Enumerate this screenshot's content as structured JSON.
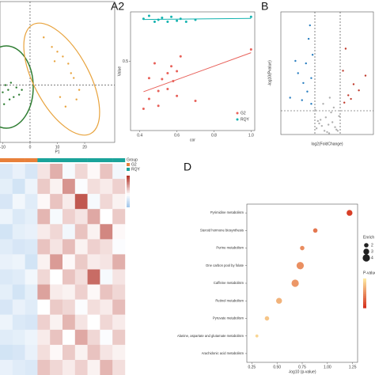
{
  "chart_data": [
    {
      "type": "scatter",
      "xlabel": "P1",
      "xlim": [
        -11,
        31
      ],
      "ylim": [
        -2.4,
        3.5
      ],
      "xticks": [
        -10,
        0,
        10,
        20
      ],
      "series": [
        {
          "color": "#2e7d32",
          "x": [
            -10,
            -9,
            -8,
            -7,
            -6,
            -5,
            -4,
            -3,
            -9.5,
            -7.5
          ],
          "values": [
            -0.3,
            0.0,
            -0.2,
            0.1,
            -0.5,
            -0.1,
            -0.4,
            -0.2,
            -0.8,
            -0.6
          ]
        },
        {
          "color": "#e8a33d",
          "x": [
            5,
            8,
            10,
            12,
            14,
            15,
            16,
            18,
            11,
            9,
            13,
            17
          ],
          "values": [
            2.0,
            1.6,
            1.4,
            1.2,
            0.9,
            0.5,
            0.3,
            -0.2,
            -0.5,
            1.0,
            -0.9,
            -0.6
          ]
        }
      ]
    },
    {
      "type": "scatter",
      "panel": "A2",
      "xlabel": "cor",
      "ylabel": "Value",
      "xlim": [
        0.35,
        1.02
      ],
      "ylim": [
        -0.2,
        1.0
      ],
      "xticks": [
        0.4,
        0.6,
        0.8,
        {
          "value": 1,
          "label": "1.0"
        }
      ],
      "yticks": [
        0.5
      ],
      "trendline": true,
      "legend": "bottom-right",
      "series": [
        {
          "name": "G2",
          "color": "#e8615a",
          "x": [
            0.42,
            0.45,
            0.5,
            0.52,
            0.55,
            0.57,
            0.6,
            0.62,
            0.45,
            0.5,
            0.55,
            0.6,
            0.7,
            1.0,
            0.48,
            0.58
          ],
          "values": [
            0.02,
            0.12,
            0.2,
            0.32,
            0.38,
            0.45,
            0.4,
            0.55,
            0.33,
            0.05,
            0.22,
            0.15,
            0.1,
            0.62,
            0.48,
            0.3
          ]
        },
        {
          "name": "RQY",
          "color": "#14b3b0",
          "x": [
            0.42,
            0.45,
            0.5,
            0.52,
            0.55,
            0.57,
            0.6,
            0.62,
            0.65,
            0.7,
            1.0,
            0.48
          ],
          "values": [
            0.93,
            0.96,
            0.92,
            0.94,
            0.9,
            0.95,
            0.91,
            0.93,
            0.9,
            0.92,
            0.95,
            0.9
          ]
        }
      ]
    },
    {
      "type": "scatter",
      "panel": "B",
      "xlabel": "log2(FoldChange)",
      "ylabel": "-log10(Pvalue)",
      "xlim": [
        -3.5,
        3.5
      ],
      "ylim": [
        0,
        10
      ],
      "series": [
        {
          "color": "#b0b0b0",
          "x": [
            -0.8,
            -0.5,
            -0.2,
            0.1,
            0.4,
            0.7,
            0.9,
            -0.9,
            -0.3,
            0.3,
            0.6,
            -0.6,
            0.0,
            0.2,
            -0.1,
            0.5,
            -0.4,
            0.8,
            -0.7,
            0.15
          ],
          "values": [
            0.5,
            1.2,
            0.3,
            0.8,
            1.0,
            0.4,
            1.5,
            2.0,
            2.5,
            1.8,
            0.6,
            0.9,
            0.2,
            3.0,
            1.4,
            2.2,
            0.7,
            0.3,
            1.1,
            0.1
          ]
        },
        {
          "color": "#2a7fc1",
          "x": [
            -1.2,
            -1.5,
            -1.8,
            -2.2,
            -1.1,
            -1.4,
            -2.8,
            -1.3,
            -1.6,
            -1.9,
            -1.2,
            -2.4
          ],
          "values": [
            2.5,
            3.5,
            4.2,
            5.0,
            6.5,
            7.8,
            3.0,
            8.9,
            5.8,
            2.8,
            4.6,
            6.0
          ]
        },
        {
          "color": "#c0392b",
          "x": [
            1.3,
            1.6,
            2.0,
            2.4,
            1.2,
            1.8,
            2.9,
            1.4
          ],
          "values": [
            2.6,
            3.2,
            4.1,
            3.6,
            5.2,
            2.9,
            4.8,
            7.0
          ]
        }
      ]
    },
    {
      "type": "heatmap",
      "legend_title": "Group",
      "clim": [
        -2,
        3
      ],
      "groups": [
        {
          "name": "G2",
          "color": "#e8803a"
        },
        {
          "name": "RQY",
          "color": "#1aa39a"
        }
      ],
      "column_groups": [
        0,
        0,
        0,
        1,
        1,
        1,
        1,
        1,
        1,
        1
      ],
      "values": [
        [
          -0.8,
          -0.5,
          -0.9,
          0.4,
          1.2,
          -0.2,
          0.6,
          0.1,
          0.9,
          -0.3
        ],
        [
          -0.6,
          -1.0,
          -0.4,
          0.8,
          0.2,
          1.6,
          -0.1,
          0.5,
          0.3,
          0.7
        ],
        [
          -0.9,
          -0.3,
          -0.7,
          0.1,
          0.9,
          0.3,
          2.5,
          -0.2,
          0.6,
          0.2
        ],
        [
          -0.4,
          -0.8,
          -0.6,
          1.1,
          -0.2,
          0.7,
          0.4,
          1.3,
          0.0,
          0.8
        ],
        [
          -1.0,
          -0.6,
          -0.5,
          0.3,
          0.6,
          -0.3,
          0.9,
          0.2,
          1.8,
          0.1
        ],
        [
          -0.7,
          -0.9,
          -0.8,
          0.9,
          0.4,
          1.0,
          0.2,
          0.7,
          0.5,
          -0.1
        ],
        [
          -0.5,
          -0.4,
          -1.0,
          0.2,
          1.5,
          0.1,
          0.8,
          0.3,
          0.4,
          1.2
        ],
        [
          -0.8,
          -0.7,
          -0.3,
          0.6,
          0.0,
          0.9,
          0.5,
          2.2,
          -0.2,
          0.4
        ],
        [
          -0.6,
          -1.0,
          -0.6,
          1.4,
          0.3,
          0.2,
          0.7,
          0.1,
          0.9,
          0.6
        ],
        [
          -0.9,
          -0.5,
          -0.7,
          0.0,
          0.8,
          0.6,
          -0.1,
          0.5,
          0.3,
          1.0
        ],
        [
          -0.4,
          -0.8,
          -0.9,
          0.7,
          0.2,
          1.1,
          0.4,
          0.0,
          0.6,
          0.3
        ],
        [
          -0.7,
          -0.6,
          -0.4,
          0.3,
          0.9,
          0.0,
          1.3,
          0.6,
          -0.1,
          0.8
        ],
        [
          -1.0,
          -0.9,
          -0.5,
          0.5,
          0.1,
          0.8,
          0.2,
          0.9,
          0.4,
          0.2
        ],
        [
          -0.5,
          -0.7,
          -0.8,
          0.9,
          0.6,
          0.3,
          0.7,
          0.2,
          1.1,
          0.5
        ]
      ]
    },
    {
      "type": "dot",
      "panel": "D",
      "xlabel": "-log10 (p-value)",
      "xlim": [
        0.2,
        1.3
      ],
      "xticks": [
        0.25,
        {
          "value": 0.5,
          "label": "0.50"
        },
        0.75,
        {
          "value": 1,
          "label": "1.00"
        },
        1.25
      ],
      "categories": [
        "Pyrimidine metabolism",
        "Steroid hormone biosynthesis",
        "Purine metabolism",
        "One carbon pool by folate",
        "Caffeine metabolism",
        "Retinol metabolism",
        "Pyruvate metabolism",
        "Alanine, aspartate and glutamate metabolism",
        "Arachidonic acid metabolism"
      ],
      "values": [
        1.22,
        0.88,
        0.75,
        0.73,
        0.68,
        0.52,
        0.4,
        0.3,
        null
      ],
      "sizes": [
        3,
        2,
        2,
        4,
        4,
        3,
        2,
        1,
        null
      ],
      "size_legend": {
        "title": "Enrich",
        "values": [
          2,
          3,
          4
        ]
      },
      "color_legend_title": "P-value"
    }
  ]
}
